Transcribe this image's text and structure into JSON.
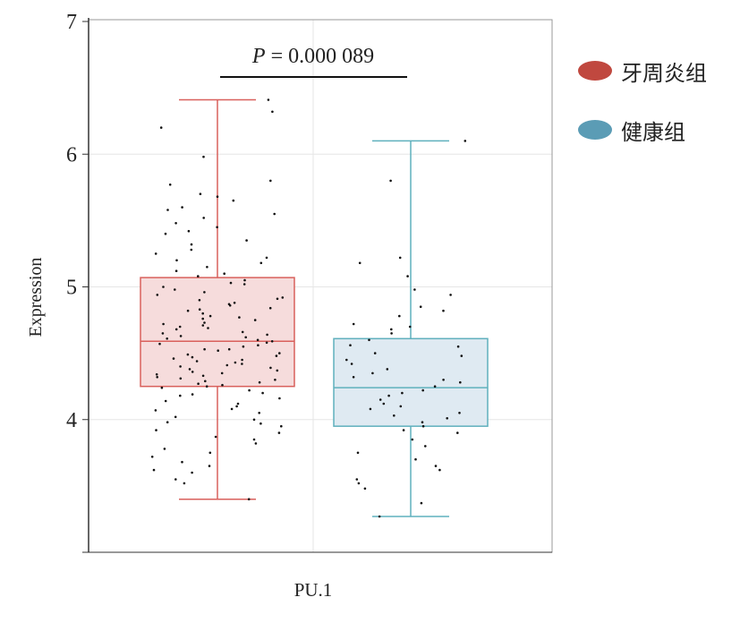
{
  "chart_data": {
    "type": "box",
    "xlabel": "",
    "ylabel": "Expression",
    "ylim": [
      3,
      7
    ],
    "yticks": [
      "4",
      "5",
      "6",
      "7"
    ],
    "category": "PU.1",
    "annotation": {
      "label": "P",
      "text": " = 0.000 089"
    },
    "grid": true,
    "legend_position": "right",
    "series": [
      {
        "name": "牙周炎组",
        "color": "#c0483f",
        "box_stroke": "#d9605c",
        "fill": "#f6dcdc",
        "whisker_low": 3.4,
        "q1": 4.25,
        "median": 4.59,
        "q3": 5.07,
        "whisker_high": 6.41,
        "points": [
          6.41,
          6.32,
          6.2,
          5.98,
          5.8,
          5.77,
          5.7,
          5.68,
          5.65,
          5.6,
          5.58,
          5.55,
          5.52,
          5.48,
          5.45,
          5.42,
          5.4,
          5.35,
          5.32,
          5.28,
          5.25,
          5.22,
          5.2,
          5.18,
          5.15,
          5.12,
          5.1,
          5.08,
          5.05,
          5.03,
          5.0,
          4.98,
          4.96,
          4.94,
          4.92,
          4.9,
          4.88,
          4.86,
          4.84,
          4.82,
          4.8,
          4.78,
          4.76,
          4.75,
          4.73,
          4.71,
          4.7,
          4.68,
          4.66,
          4.65,
          4.63,
          4.62,
          4.6,
          4.59,
          4.58,
          4.56,
          4.55,
          4.53,
          4.52,
          4.5,
          4.49,
          4.47,
          4.46,
          4.44,
          4.43,
          4.42,
          4.4,
          4.39,
          4.37,
          4.36,
          4.35,
          4.33,
          4.32,
          4.3,
          4.29,
          4.28,
          4.26,
          4.25,
          4.24,
          4.22,
          4.2,
          4.18,
          4.16,
          4.14,
          4.12,
          4.1,
          4.08,
          4.05,
          4.02,
          4.0,
          3.98,
          3.95,
          3.92,
          3.9,
          3.87,
          3.85,
          3.82,
          3.78,
          3.75,
          3.72,
          3.68,
          3.65,
          3.62,
          3.6,
          3.55,
          3.52,
          3.4,
          4.72,
          4.61,
          4.48,
          4.41,
          4.34,
          4.27,
          4.57,
          4.69,
          4.83,
          4.91,
          5.02,
          4.53,
          4.45,
          4.38,
          4.64,
          4.77,
          4.87,
          4.31,
          4.19,
          4.07,
          3.97
        ]
      },
      {
        "name": "健康组",
        "color": "#5b9cb5",
        "box_stroke": "#5fb0bd",
        "fill": "#dfeaf2",
        "whisker_low": 3.27,
        "q1": 3.95,
        "median": 4.24,
        "q3": 4.61,
        "whisker_high": 6.1,
        "points": [
          6.1,
          5.8,
          5.22,
          5.18,
          5.08,
          4.98,
          4.94,
          4.85,
          4.82,
          4.78,
          4.72,
          4.7,
          4.68,
          4.65,
          4.6,
          4.56,
          4.55,
          4.5,
          4.48,
          4.45,
          4.42,
          4.38,
          4.35,
          4.32,
          4.3,
          4.28,
          4.25,
          4.22,
          4.2,
          4.18,
          4.15,
          4.12,
          4.1,
          4.08,
          4.05,
          4.03,
          4.01,
          3.98,
          3.95,
          3.92,
          3.9,
          3.85,
          3.8,
          3.75,
          3.7,
          3.65,
          3.62,
          3.55,
          3.52,
          3.48,
          3.37,
          3.27
        ]
      }
    ]
  }
}
